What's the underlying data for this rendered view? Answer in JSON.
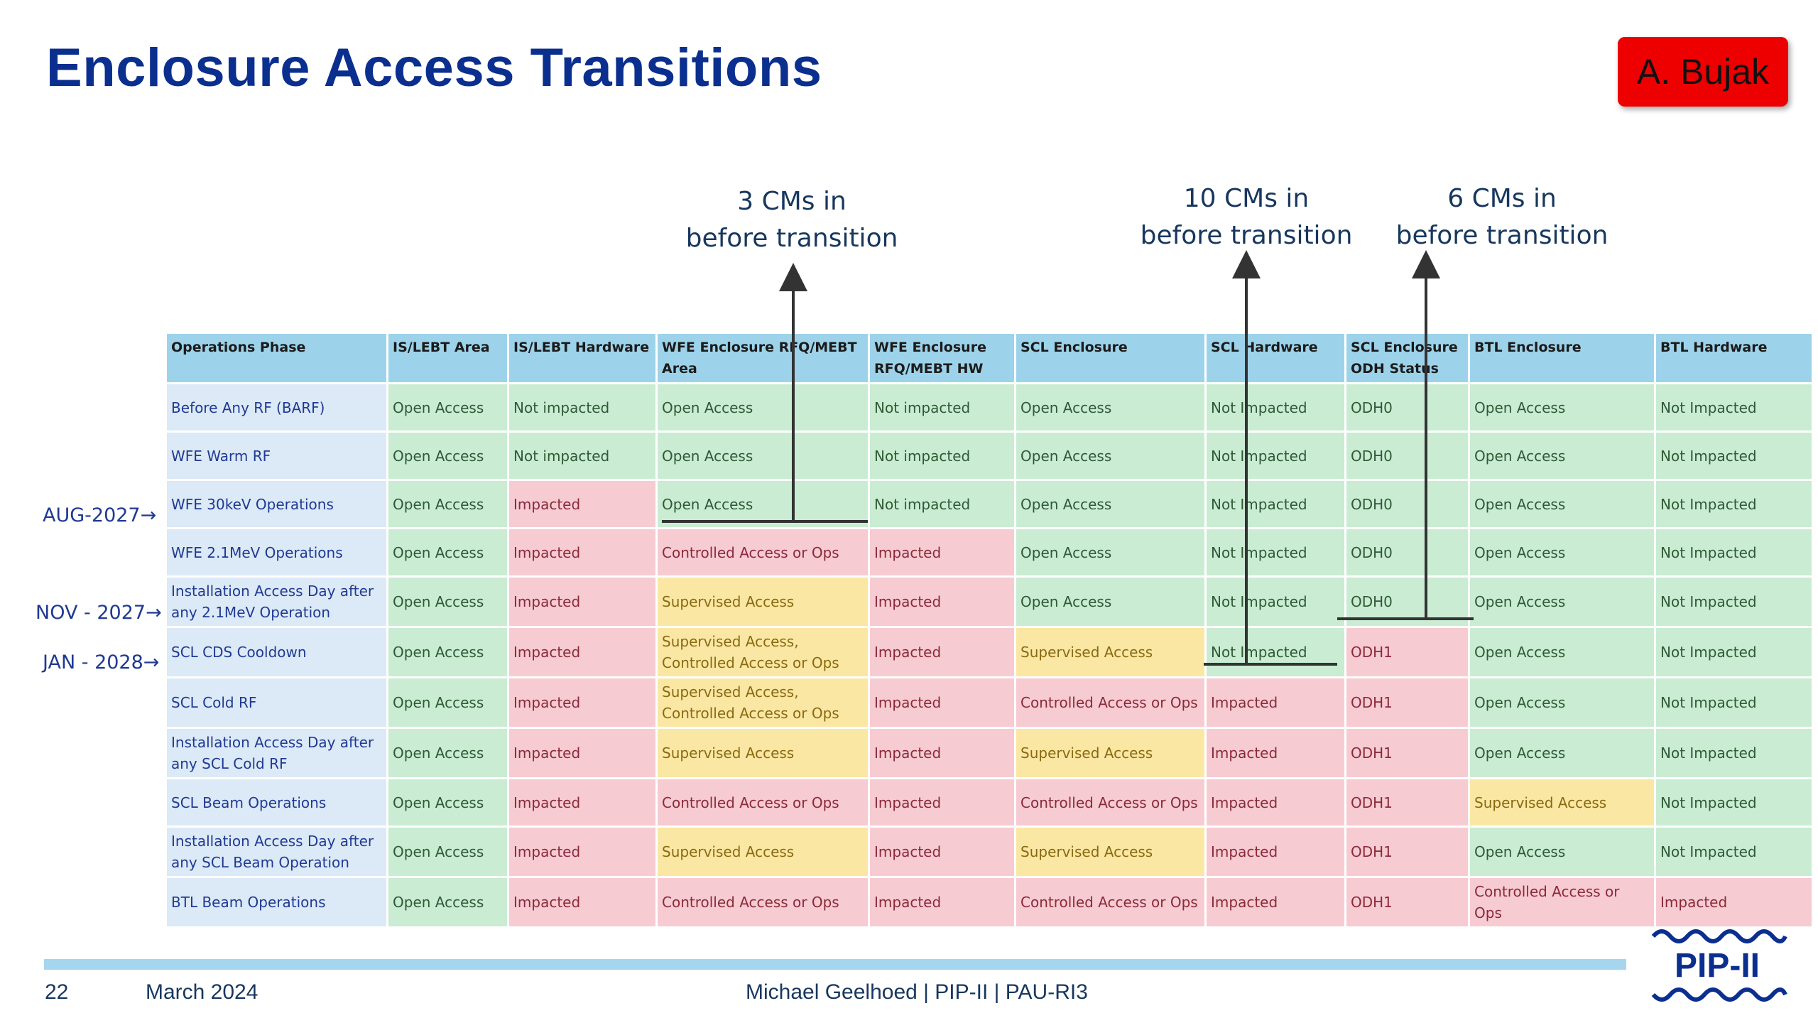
{
  "slide": {
    "title": "Enclosure Access Transitions",
    "author_badge": "A. Bujak"
  },
  "callouts": {
    "wfe": [
      "3 CMs in",
      "before transition"
    ],
    "scl_hw": [
      "10 CMs in",
      "before transition"
    ],
    "scl_odh": [
      "6 CMs in",
      "before transition"
    ]
  },
  "timeline": {
    "aug": "AUG-2027→",
    "nov": "NOV - 2027→",
    "jan": "JAN - 2028→"
  },
  "table": {
    "headers": [
      "Operations Phase",
      "IS/LEBT Area",
      "IS/LEBT Hardware",
      "WFE Enclosure RFQ/MEBT Area",
      "WFE Enclosure RFQ/MEBT HW",
      "SCL Enclosure",
      "SCL Hardware",
      "SCL Enclosure ODH Status",
      "BTL Enclosure",
      "BTL Hardware"
    ],
    "rows": [
      [
        "Before Any RF (BARF)",
        "Open Access",
        "Not impacted",
        "Open Access",
        "Not impacted",
        "Open Access",
        "Not Impacted",
        "ODH0",
        "Open Access",
        "Not Impacted"
      ],
      [
        "WFE Warm RF",
        "Open Access",
        "Not impacted",
        "Open Access",
        "Not impacted",
        "Open Access",
        "Not Impacted",
        "ODH0",
        "Open Access",
        "Not Impacted"
      ],
      [
        "WFE 30keV Operations",
        "Open Access",
        "Impacted",
        "Open Access",
        "Not impacted",
        "Open Access",
        "Not Impacted",
        "ODH0",
        "Open Access",
        "Not Impacted"
      ],
      [
        "WFE 2.1MeV Operations",
        "Open Access",
        "Impacted",
        "Controlled Access or Ops",
        "Impacted",
        "Open Access",
        "Not Impacted",
        "ODH0",
        "Open Access",
        "Not Impacted"
      ],
      [
        "Installation Access Day after any 2.1MeV Operation",
        "Open Access",
        "Impacted",
        "Supervised Access",
        "Impacted",
        "Open Access",
        "Not Impacted",
        "ODH0",
        "Open Access",
        "Not Impacted"
      ],
      [
        "SCL CDS Cooldown",
        "Open Access",
        "Impacted",
        "Supervised Access, Controlled Access or Ops",
        "Impacted",
        "Supervised Access",
        "Not Impacted",
        "ODH1",
        "Open Access",
        "Not Impacted"
      ],
      [
        "SCL Cold RF",
        "Open Access",
        "Impacted",
        "Supervised Access, Controlled Access or Ops",
        "Impacted",
        "Controlled Access or Ops",
        "Impacted",
        "ODH1",
        "Open Access",
        "Not Impacted"
      ],
      [
        "Installation Access Day after any SCL Cold RF",
        "Open Access",
        "Impacted",
        "Supervised Access",
        "Impacted",
        "Supervised Access",
        "Impacted",
        "ODH1",
        "Open Access",
        "Not Impacted"
      ],
      [
        "SCL Beam Operations",
        "Open Access",
        "Impacted",
        "Controlled Access or Ops",
        "Impacted",
        "Controlled Access or Ops",
        "Impacted",
        "ODH1",
        "Supervised Access",
        "Not Impacted"
      ],
      [
        "Installation Access Day after any SCL Beam Operation",
        "Open Access",
        "Impacted",
        "Supervised Access",
        "Impacted",
        "Supervised Access",
        "Impacted",
        "ODH1",
        "Open Access",
        "Not Impacted"
      ],
      [
        "BTL Beam Operations",
        "Open Access",
        "Impacted",
        "Controlled Access or Ops",
        "Impacted",
        "Controlled Access or Ops",
        "Impacted",
        "ODH1",
        "Controlled Access or Ops",
        "Impacted"
      ]
    ]
  },
  "footer": {
    "page_number": "22",
    "date": "March 2024",
    "center_text": "Michael Geelhoed | PIP-II | PAU-RI3",
    "logo_text": "PIP-II"
  },
  "colors": {
    "title": "#0b2f8f",
    "badge": "#ee0000",
    "header_fill": "#9dd3ea",
    "open_access": "#c9ecd2",
    "impacted": "#f7cbd2",
    "supervised": "#fbe7a4",
    "phase_col": "#dce9f6"
  }
}
